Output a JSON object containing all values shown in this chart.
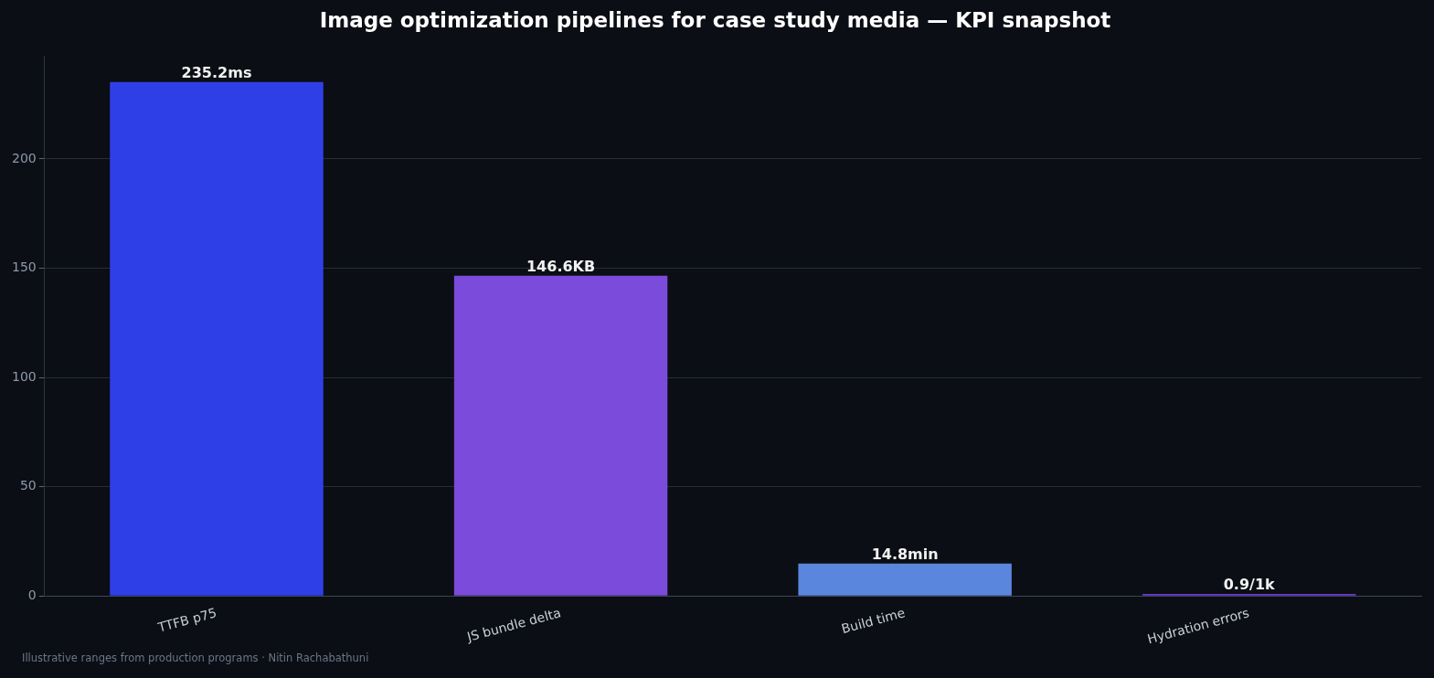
{
  "chart_data": {
    "type": "bar",
    "title": "Image optimization pipelines for case study media — KPI snapshot",
    "categories": [
      "TTFB p75",
      "JS bundle delta",
      "Build time",
      "Hydration errors"
    ],
    "values": [
      235.2,
      146.6,
      14.8,
      0.9
    ],
    "colors": [
      "#2f3fe8",
      "#7b4bdb",
      "#5a86de",
      "#6a3ad0"
    ],
    "value_labels": [
      "235.2ms",
      "146.6KB",
      "14.8min",
      "0.9/1k"
    ],
    "ylim": [
      0,
      247
    ],
    "yticks": [
      0,
      50,
      100,
      150,
      200
    ],
    "grid": "y",
    "legend": false,
    "annotations": [
      "Illustrative ranges from production programs · Nitin Rachabathuni"
    ]
  }
}
